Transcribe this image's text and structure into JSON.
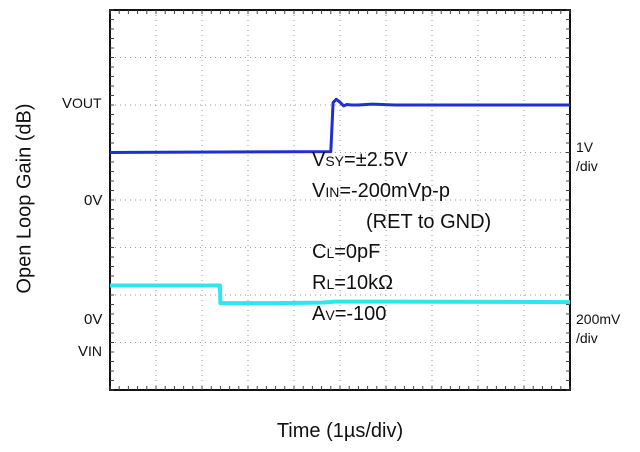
{
  "chart_data": {
    "type": "line",
    "title": "",
    "xlabel": "Time (1µs/div)",
    "ylabel": "Open Loop Gain (dB)",
    "grid": true,
    "x_divisions": 10,
    "y_divisions": 8,
    "x_units": "div",
    "y_units": "div",
    "xlim": [
      0,
      10
    ],
    "ylim": [
      0,
      8
    ],
    "channel_labels": {
      "vout_label": "V",
      "vout_sub": "OUT",
      "vout_zero": "0V",
      "vin_zero": "0V",
      "vin_label": "V",
      "vin_sub": "IN"
    },
    "scales": {
      "ch1": [
        "1V",
        "/div"
      ],
      "ch2": [
        "200mV",
        "/div"
      ]
    },
    "conditions": [
      {
        "prefix": "V",
        "sub": "SY",
        "text": "=±2.5V"
      },
      {
        "prefix": "V",
        "sub": "IN",
        "text": "=-200mVp-p"
      },
      {
        "prefix": "",
        "sub": "",
        "text": "(RET to GND)"
      },
      {
        "prefix": "C",
        "sub": "L",
        "text": "=0pF"
      },
      {
        "prefix": "R",
        "sub": "L",
        "text": "=10kΩ"
      },
      {
        "prefix": "A",
        "sub": "V",
        "text": "=-100"
      }
    ],
    "series": [
      {
        "color": "#1f2fd1",
        "x": [
          0,
          4.8,
          4.85,
          4.92,
          5.0,
          5.08,
          5.15,
          5.25,
          5.4,
          5.7,
          6.2,
          10
        ],
        "y": [
          5.0,
          5.02,
          6.05,
          6.12,
          6.06,
          5.98,
          6.01,
          6.0,
          6.0,
          6.02,
          6.0,
          6.0
        ]
      },
      {
        "color": "#2ee6ee",
        "x": [
          0,
          2.39,
          2.4,
          3.0,
          3.6,
          4.6,
          4.9,
          6.0,
          10
        ],
        "y": [
          2.2,
          2.2,
          1.83,
          1.83,
          1.83,
          1.84,
          1.86,
          1.86,
          1.85
        ]
      }
    ]
  }
}
